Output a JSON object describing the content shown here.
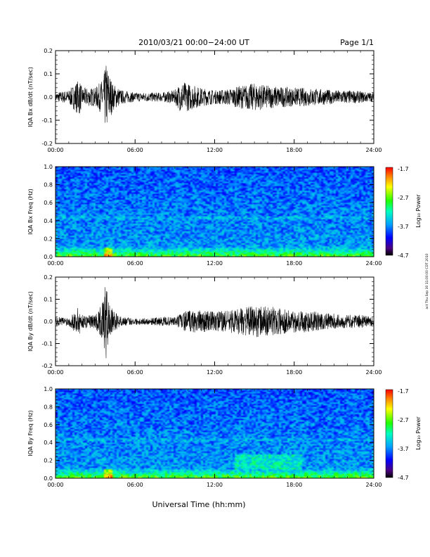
{
  "header": {
    "title": "2010/03/21  00:00−24:00 UT",
    "page": "Page 1/1"
  },
  "side_note": "act Thu Sep 30 11:00:00 CDT 2010",
  "chart_data": [
    {
      "type": "line",
      "ylabel": "IQA Bx dB/dt (nT/sec)",
      "ylim": [
        -0.2,
        0.2
      ],
      "yticks": [
        -0.2,
        -0.1,
        0.0,
        0.1,
        0.2
      ],
      "xlim": [
        0,
        24
      ],
      "xticks": [
        "00:00",
        "06:00",
        "12:00",
        "18:00",
        "24:00"
      ],
      "series": [
        {
          "x": [
            0,
            1,
            1.8,
            2,
            3,
            3.6,
            3.8,
            4,
            4.3,
            5,
            6,
            7,
            8,
            9,
            9.5,
            10,
            11,
            12,
            13,
            14,
            15,
            16,
            17,
            18,
            19,
            20,
            21,
            22,
            23,
            24
          ],
          "envelope": [
            0.02,
            0.03,
            0.08,
            0.04,
            0.04,
            0.08,
            0.15,
            0.12,
            0.06,
            0.03,
            0.02,
            0.02,
            0.02,
            0.03,
            0.07,
            0.06,
            0.04,
            0.03,
            0.035,
            0.05,
            0.06,
            0.05,
            0.045,
            0.04,
            0.04,
            0.035,
            0.03,
            0.03,
            0.025,
            0.02
          ]
        }
      ]
    },
    {
      "type": "heatmap",
      "ylabel": "IQA Bx Freq (Hz)",
      "ylim": [
        0,
        1.0
      ],
      "yticks": [
        0.0,
        0.2,
        0.4,
        0.6,
        0.8,
        1.0
      ],
      "xlim": [
        0,
        24
      ],
      "xticks": [
        "00:00",
        "06:00",
        "12:00",
        "18:00",
        "24:00"
      ],
      "colorbar": {
        "label": "Log₁₀ Power",
        "range": [
          -4.7,
          -1.7
        ],
        "ticks": [
          "-1.7",
          "-2.7",
          "-3.7",
          "-4.7"
        ]
      }
    },
    {
      "type": "line",
      "ylabel": "IQA By dB/dt (nT/sec)",
      "ylim": [
        -0.2,
        0.2
      ],
      "yticks": [
        -0.2,
        -0.1,
        0.0,
        0.1,
        0.2
      ],
      "xlim": [
        0,
        24
      ],
      "xticks": [
        "00:00",
        "06:00",
        "12:00",
        "18:00",
        "24:00"
      ],
      "series": [
        {
          "x": [
            0,
            1,
            1.8,
            2,
            3,
            3.6,
            3.8,
            4,
            4.3,
            5,
            6,
            7,
            8,
            9,
            9.5,
            10,
            11,
            12,
            13,
            14,
            15,
            16,
            17,
            18,
            19,
            20,
            21,
            22,
            23,
            24
          ],
          "envelope": [
            0.02,
            0.02,
            0.07,
            0.03,
            0.03,
            0.09,
            0.18,
            0.1,
            0.05,
            0.02,
            0.015,
            0.015,
            0.02,
            0.02,
            0.04,
            0.05,
            0.05,
            0.045,
            0.05,
            0.06,
            0.07,
            0.07,
            0.06,
            0.05,
            0.05,
            0.04,
            0.035,
            0.03,
            0.03,
            0.02
          ]
        }
      ]
    },
    {
      "type": "heatmap",
      "ylabel": "IQA By Freq (Hz)",
      "ylim": [
        0,
        1.0
      ],
      "yticks": [
        0.0,
        0.2,
        0.4,
        0.6,
        0.8,
        1.0
      ],
      "xlim": [
        0,
        24
      ],
      "xticks": [
        "00:00",
        "06:00",
        "12:00",
        "18:00",
        "24:00"
      ],
      "xlabel": "Universal Time (hh:mm)",
      "colorbar": {
        "label": "Log₁₀ Power",
        "range": [
          -4.7,
          -1.7
        ],
        "ticks": [
          "-1.7",
          "-2.7",
          "-3.7",
          "-4.7"
        ]
      }
    }
  ]
}
